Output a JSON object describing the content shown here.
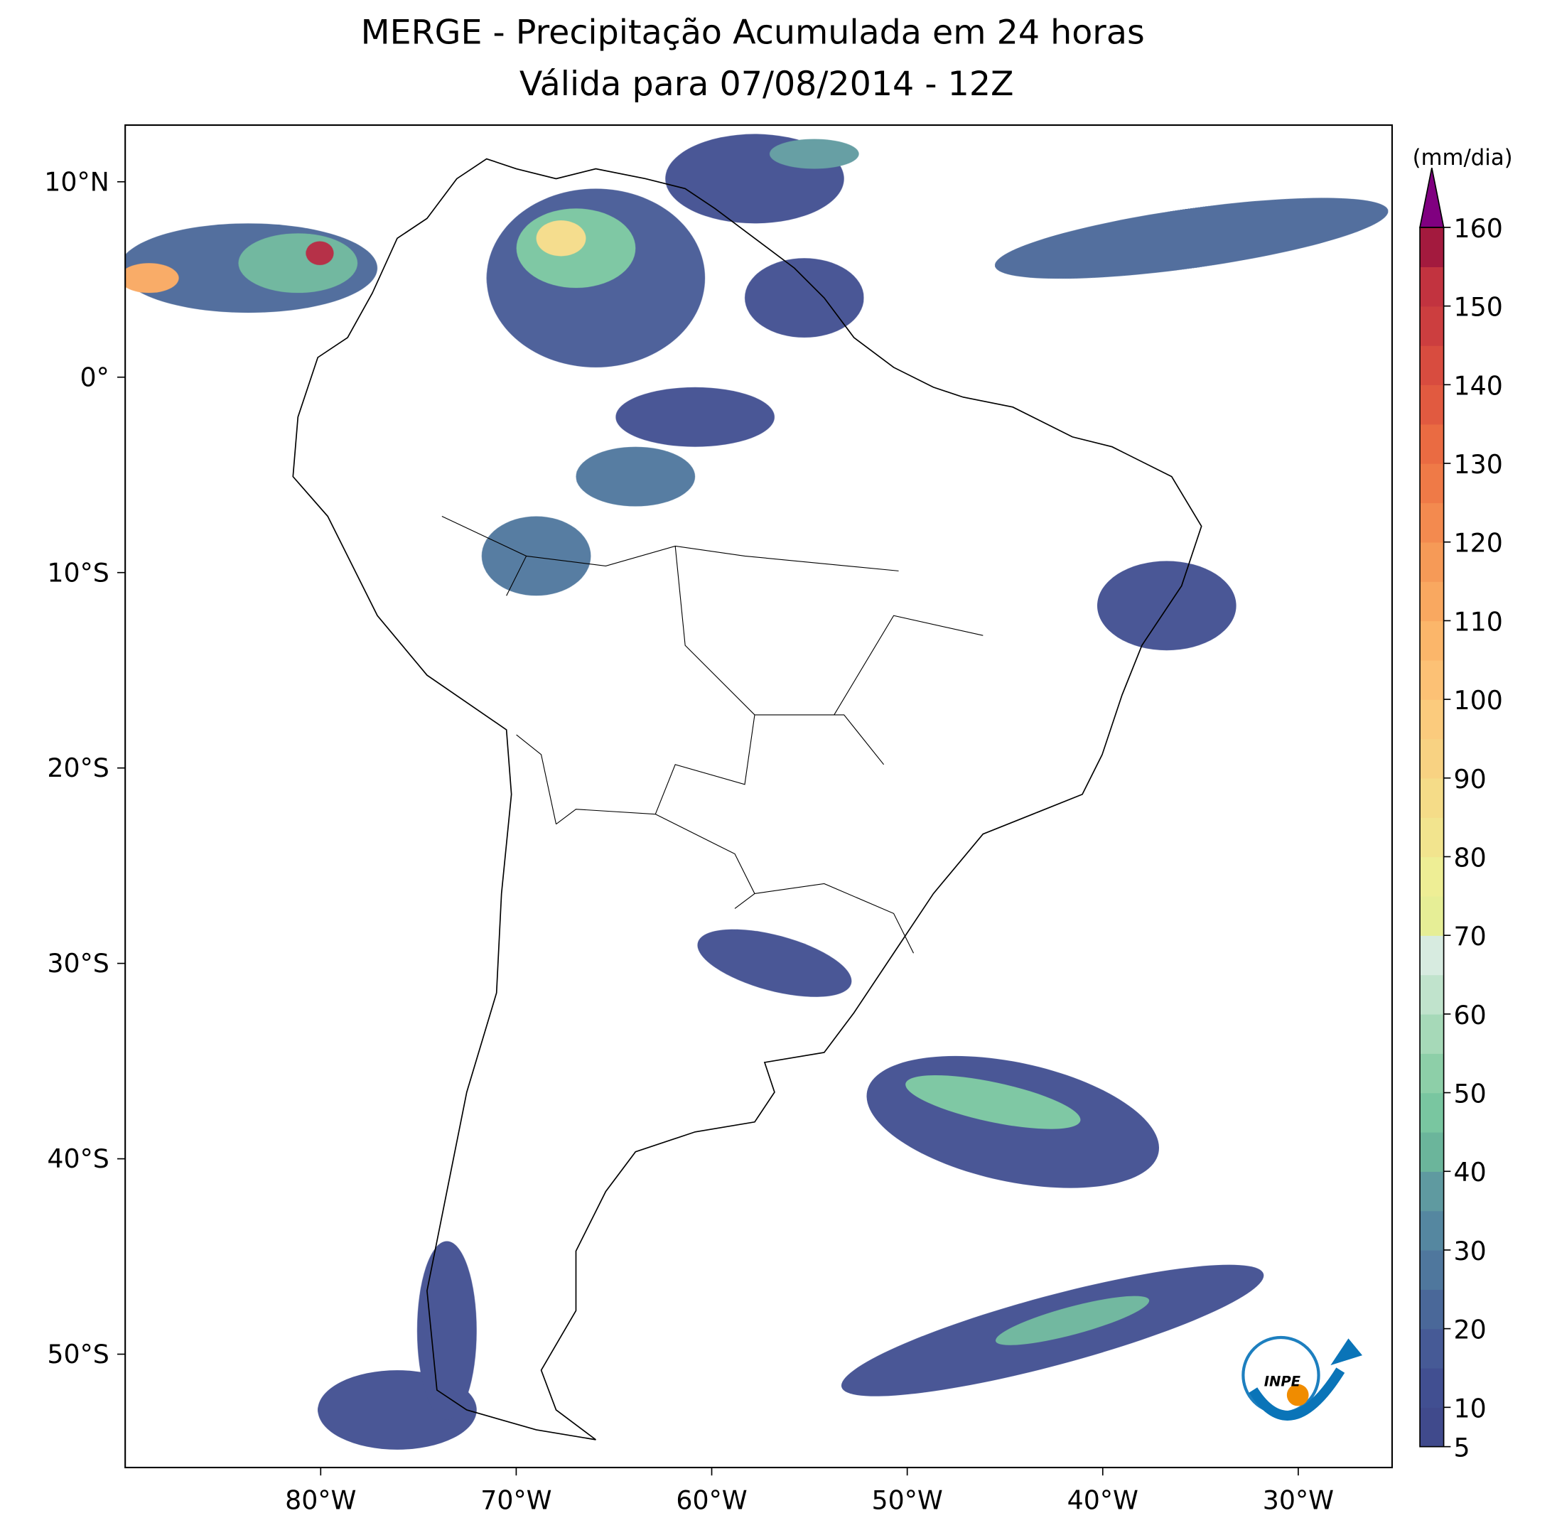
{
  "title": [
    "MERGE - Precipitação Acumulada em 24 horas",
    "Válida para 07/08/2014 - 12Z"
  ],
  "map": {
    "xlim": [
      -90,
      -25.2
    ],
    "ylim": [
      -55.8,
      12.9
    ],
    "xticks": [
      {
        "value": -80,
        "label": "80°W"
      },
      {
        "value": -70,
        "label": "70°W"
      },
      {
        "value": -60,
        "label": "60°W"
      },
      {
        "value": -50,
        "label": "50°W"
      },
      {
        "value": -40,
        "label": "40°W"
      },
      {
        "value": -30,
        "label": "30°W"
      }
    ],
    "yticks": [
      {
        "value": 10,
        "label": "10°N"
      },
      {
        "value": 0,
        "label": "0°"
      },
      {
        "value": -10,
        "label": "10°S"
      },
      {
        "value": -20,
        "label": "20°S"
      },
      {
        "value": -30,
        "label": "30°S"
      },
      {
        "value": -40,
        "label": "40°S"
      },
      {
        "value": -50,
        "label": "50°S"
      }
    ]
  },
  "colorbar": {
    "label": "(mm/dia)",
    "lim": [
      5,
      160
    ],
    "ticks": [
      5,
      10,
      20,
      30,
      40,
      50,
      60,
      70,
      80,
      90,
      100,
      110,
      120,
      130,
      140,
      150,
      160
    ],
    "colors": [
      "#404a8c",
      "#414f91",
      "#465a96",
      "#4a6899",
      "#4f779d",
      "#5587a0",
      "#5f9aa0",
      "#6bb59b",
      "#79c6a0",
      "#8dcfa8",
      "#a6d9b8",
      "#c0e3cc",
      "#d7ebe0",
      "#e6ee96",
      "#eeee95",
      "#f2e48e",
      "#f5dc88",
      "#f8d282",
      "#fbcb7d",
      "#fcc175",
      "#fbb66a",
      "#f9a860",
      "#f69a57",
      "#f38a4f",
      "#ef7a47",
      "#ea6b42",
      "#e15a40",
      "#d84c3f",
      "#cc3e3f",
      "#c2333f",
      "#a31a3e"
    ],
    "over_color": "#800080"
  },
  "logo_text": "INPE"
}
